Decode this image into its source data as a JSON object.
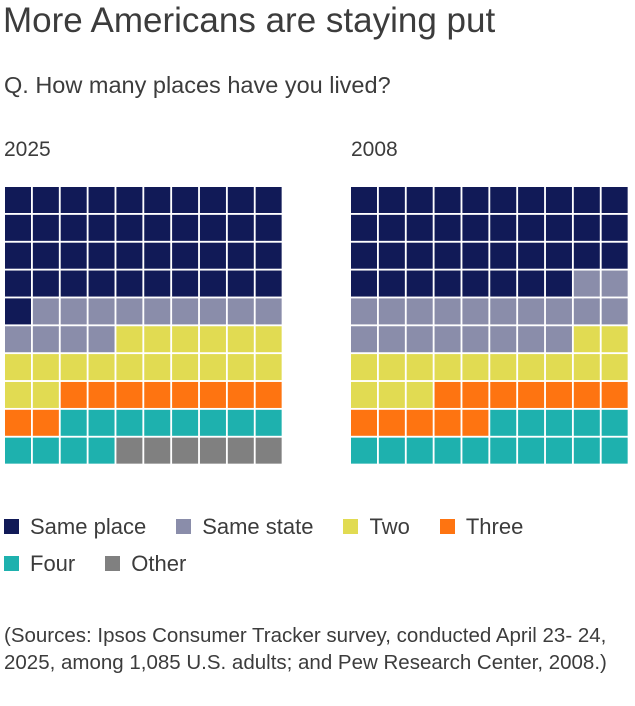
{
  "header": {
    "title": "More Americans are staying put",
    "subtitle": "Q. How many places have you lived?"
  },
  "chart_data": {
    "type": "waffle",
    "title": "More Americans are staying put",
    "subtitle": "Q. How many places have you lived?",
    "units": "percent of respondents (1 square = 1%)",
    "grid": [
      10,
      10
    ],
    "categories": [
      "Same place",
      "Same state",
      "Two",
      "Three",
      "Four",
      "Other"
    ],
    "colors": {
      "Same place": "#111a57",
      "Same state": "#8a8daa",
      "Two": "#e1db52",
      "Three": "#fe7411",
      "Four": "#1eb1ae",
      "Other": "#808080"
    },
    "panels": [
      {
        "label": "2025",
        "values": {
          "Same place": 41,
          "Same state": 13,
          "Two": 18,
          "Three": 10,
          "Four": 12,
          "Other": 6
        }
      },
      {
        "label": "2008",
        "values": {
          "Same place": 38,
          "Same state": 20,
          "Two": 15,
          "Three": 12,
          "Four": 15,
          "Other": 0
        }
      }
    ],
    "legend": {
      "position": "bottom",
      "rows": [
        [
          "Same place",
          "Same state",
          "Two",
          "Three"
        ],
        [
          "Four",
          "Other"
        ]
      ]
    }
  },
  "footer": {
    "source": "(Sources: Ipsos Consumer Tracker survey, conducted April 23- 24, 2025, among 1,085 U.S. adults; and Pew Research Center, 2008.)"
  }
}
